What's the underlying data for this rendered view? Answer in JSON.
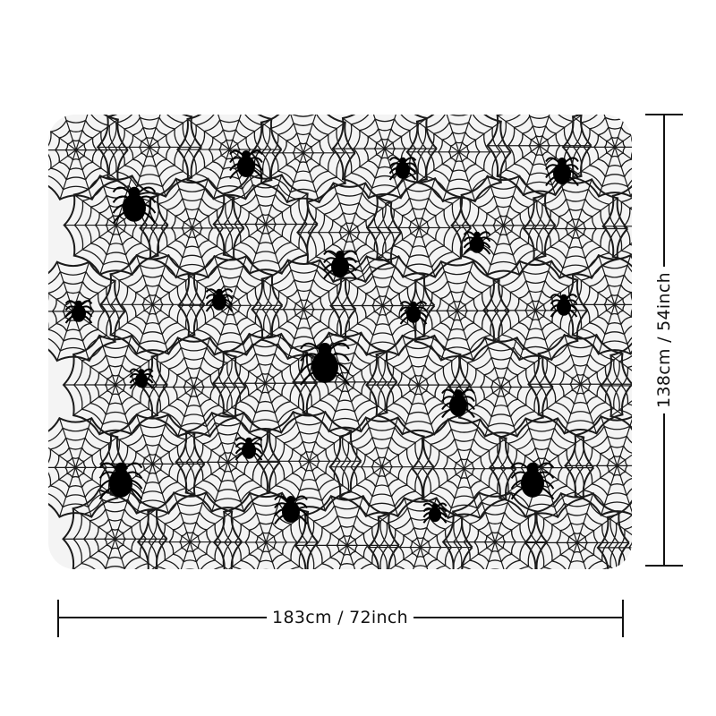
{
  "product": {
    "name": "spider web lace tablecloth",
    "color": "#1a1a1a",
    "background": "#f4f4f4"
  },
  "dimensions": {
    "width_label": "183cm / 72inch",
    "height_label": "138cm / 54inch"
  },
  "line_color": "#111111"
}
